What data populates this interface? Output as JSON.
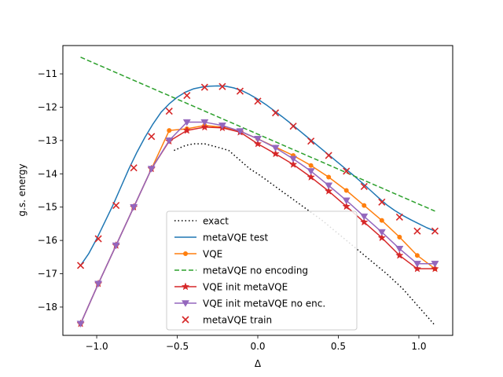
{
  "chart_data": {
    "type": "line",
    "xlabel": "Δ",
    "ylabel": "g.s. energy",
    "xlim": [
      -1.21,
      1.21
    ],
    "ylim": [
      -18.85,
      -10.15
    ],
    "xticks": [
      -1.0,
      -0.5,
      0.0,
      0.5,
      1.0
    ],
    "xtick_labels": [
      "−1.0",
      "−0.5",
      "0.0",
      "0.5",
      "1.0"
    ],
    "yticks": [
      -18,
      -17,
      -16,
      -15,
      -14,
      -13,
      -12,
      -11
    ],
    "ytick_labels": [
      "−18",
      "−17",
      "−16",
      "−15",
      "−14",
      "−13",
      "−12",
      "−11"
    ],
    "grid": false,
    "legend_position": "lower-center",
    "series": [
      {
        "name": "exact",
        "color": "#000000",
        "style": "dotted",
        "marker": "none",
        "x": [
          -0.52,
          -0.45,
          -0.4,
          -0.33,
          -0.25,
          -0.18,
          -0.05,
          0.0,
          0.1,
          0.2,
          0.3,
          0.4,
          0.5,
          0.6,
          0.7,
          0.8,
          0.9,
          1.0,
          1.1
        ],
        "y": [
          -13.3,
          -13.15,
          -13.1,
          -13.1,
          -13.2,
          -13.3,
          -13.85,
          -14.0,
          -14.35,
          -14.7,
          -15.05,
          -15.4,
          -15.8,
          -16.2,
          -16.6,
          -17.0,
          -17.45,
          -18.0,
          -18.55
        ]
      },
      {
        "name": "metaVQE test",
        "color": "#1f77b4",
        "style": "solid",
        "marker": "none",
        "x": [
          -1.1,
          -1.05,
          -1.0,
          -0.95,
          -0.9,
          -0.85,
          -0.8,
          -0.75,
          -0.7,
          -0.65,
          -0.6,
          -0.55,
          -0.5,
          -0.45,
          -0.4,
          -0.35,
          -0.3,
          -0.25,
          -0.2,
          -0.15,
          -0.1,
          -0.05,
          0.0,
          0.05,
          0.1,
          0.15,
          0.2,
          0.25,
          0.3,
          0.35,
          0.4,
          0.45,
          0.5,
          0.55,
          0.6,
          0.65,
          0.7,
          0.75,
          0.8,
          0.85,
          0.9,
          0.95,
          1.0,
          1.05,
          1.1
        ],
        "y": [
          -16.75,
          -16.4,
          -15.95,
          -15.45,
          -14.95,
          -14.4,
          -13.85,
          -13.35,
          -12.9,
          -12.5,
          -12.15,
          -11.9,
          -11.7,
          -11.55,
          -11.45,
          -11.4,
          -11.37,
          -11.36,
          -11.37,
          -11.42,
          -11.5,
          -11.62,
          -11.76,
          -11.92,
          -12.1,
          -12.28,
          -12.47,
          -12.67,
          -12.87,
          -13.07,
          -13.27,
          -13.47,
          -13.67,
          -13.87,
          -14.07,
          -14.28,
          -14.5,
          -14.72,
          -14.93,
          -15.1,
          -15.25,
          -15.38,
          -15.5,
          -15.62,
          -15.72
        ]
      },
      {
        "name": "VQE",
        "color": "#ff7f0e",
        "style": "solid",
        "marker": "dot",
        "x": [
          -1.1,
          -0.99,
          -0.88,
          -0.77,
          -0.66,
          -0.55,
          -0.44,
          -0.33,
          -0.22,
          -0.11,
          0.0,
          0.11,
          0.22,
          0.33,
          0.44,
          0.55,
          0.66,
          0.77,
          0.88,
          0.99,
          1.1
        ],
        "y": [
          -18.5,
          -17.3,
          -16.15,
          -15.0,
          -13.85,
          -12.7,
          -12.65,
          -12.55,
          -12.6,
          -12.72,
          -12.95,
          -13.2,
          -13.45,
          -13.75,
          -14.1,
          -14.5,
          -14.95,
          -15.4,
          -15.9,
          -16.45,
          -16.85
        ]
      },
      {
        "name": "metaVQE no encoding",
        "color": "#2ca02c",
        "style": "dashed",
        "marker": "none",
        "x": [
          -1.1,
          1.1
        ],
        "y": [
          -10.5,
          -15.12
        ]
      },
      {
        "name": "VQE init metaVQE",
        "color": "#d62728",
        "style": "solid",
        "marker": "star",
        "x": [
          -1.1,
          -0.99,
          -0.88,
          -0.77,
          -0.66,
          -0.55,
          -0.44,
          -0.33,
          -0.22,
          -0.11,
          0.0,
          0.11,
          0.22,
          0.33,
          0.44,
          0.55,
          0.66,
          0.77,
          0.88,
          0.99,
          1.1
        ],
        "y": [
          -18.5,
          -17.3,
          -16.15,
          -15.0,
          -13.85,
          -13.02,
          -12.7,
          -12.6,
          -12.62,
          -12.75,
          -13.1,
          -13.4,
          -13.72,
          -14.1,
          -14.52,
          -14.98,
          -15.45,
          -15.92,
          -16.45,
          -16.85,
          -16.85
        ]
      },
      {
        "name": "VQE init metaVQE no enc.",
        "color": "#9467bd",
        "style": "solid",
        "marker": "triangle-down",
        "x": [
          -1.1,
          -0.99,
          -0.88,
          -0.77,
          -0.66,
          -0.55,
          -0.44,
          -0.33,
          -0.22,
          -0.11,
          0.0,
          0.11,
          0.22,
          0.33,
          0.44,
          0.55,
          0.66,
          0.77,
          0.88,
          0.99,
          1.1
        ],
        "y": [
          -18.5,
          -17.3,
          -16.15,
          -15.0,
          -13.85,
          -13.0,
          -12.45,
          -12.45,
          -12.55,
          -12.72,
          -12.95,
          -13.22,
          -13.55,
          -13.92,
          -14.35,
          -14.8,
          -15.28,
          -15.75,
          -16.25,
          -16.7,
          -16.7
        ]
      },
      {
        "name": "metaVQE train",
        "color": "#d62728",
        "style": "none",
        "marker": "x",
        "x": [
          -1.1,
          -0.99,
          -0.88,
          -0.77,
          -0.66,
          -0.55,
          -0.44,
          -0.33,
          -0.22,
          -0.11,
          0.0,
          0.11,
          0.22,
          0.33,
          0.44,
          0.55,
          0.66,
          0.77,
          0.88,
          0.99,
          1.1
        ],
        "y": [
          -16.75,
          -15.95,
          -14.95,
          -13.82,
          -12.88,
          -12.12,
          -11.65,
          -11.4,
          -11.38,
          -11.52,
          -11.82,
          -12.17,
          -12.57,
          -13.02,
          -13.45,
          -13.92,
          -14.38,
          -14.85,
          -15.3,
          -15.72,
          -15.72
        ]
      }
    ]
  }
}
